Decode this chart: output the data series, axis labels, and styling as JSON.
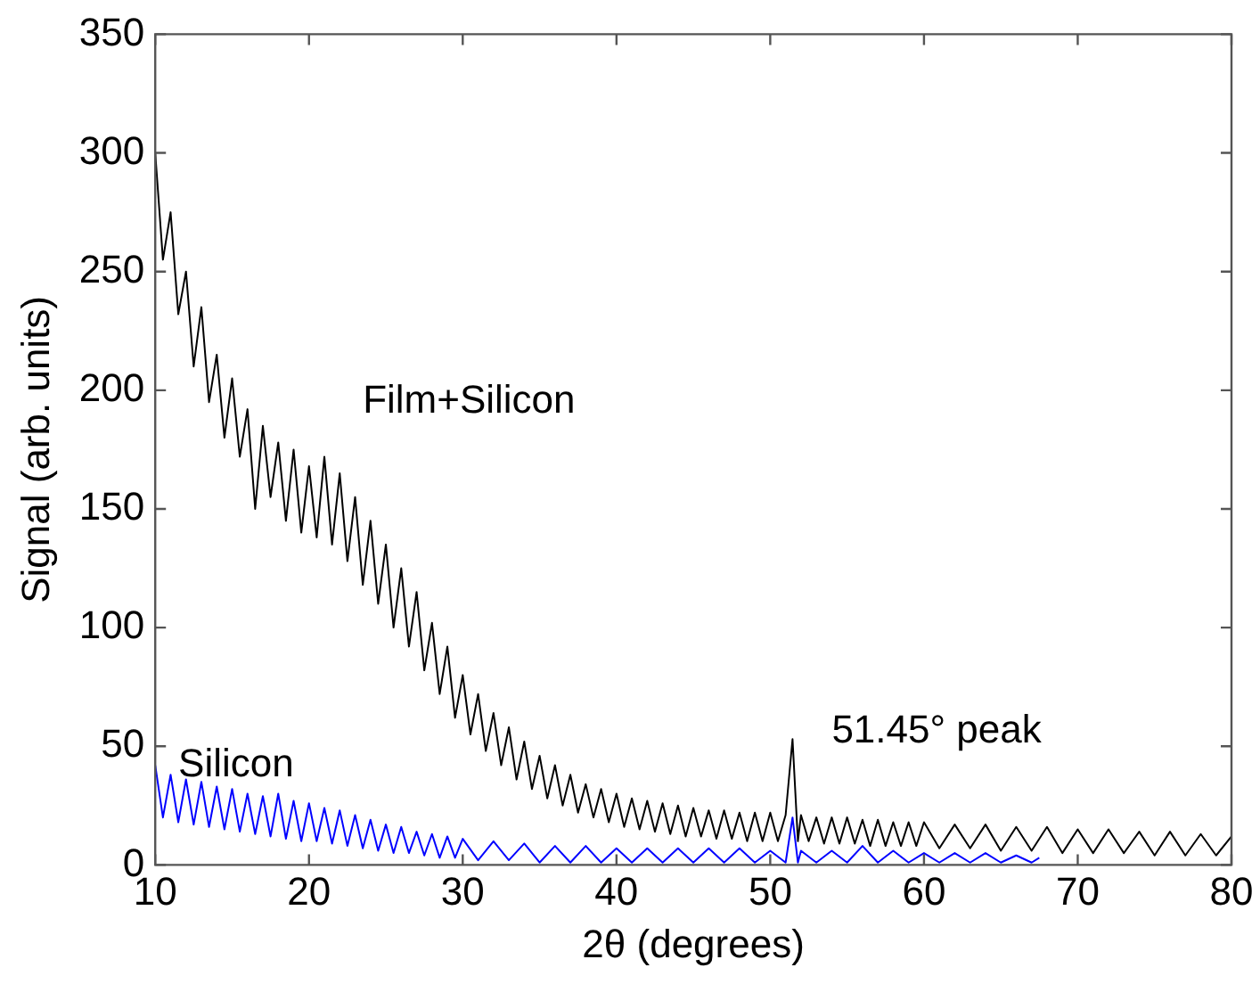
{
  "chart_data": {
    "type": "line",
    "xlabel": "2θ (degrees)",
    "ylabel": "Signal (arb. units)",
    "xlim": [
      10,
      80
    ],
    "xticks": [
      10,
      20,
      30,
      40,
      50,
      60,
      70,
      80
    ],
    "ylim": [
      0,
      350
    ],
    "yticks": [
      0,
      50,
      100,
      150,
      200,
      250,
      300,
      350
    ],
    "grid": false,
    "legend": false,
    "marker": "none",
    "line_style": "solid",
    "annotations": [
      {
        "text": "51.45° peak",
        "x": 51.45,
        "y": 53
      }
    ],
    "series": [
      {
        "name": "Film+Silicon",
        "color": "#000000",
        "x": [
          10,
          10.5,
          11,
          11.5,
          12,
          12.5,
          13,
          13.5,
          14,
          14.5,
          15,
          15.5,
          16,
          16.5,
          17,
          17.5,
          18,
          18.5,
          19,
          19.5,
          20,
          20.5,
          21,
          21.5,
          22,
          22.5,
          23,
          23.5,
          24,
          24.5,
          25,
          25.5,
          26,
          26.5,
          27,
          27.5,
          28,
          28.5,
          29,
          29.5,
          30,
          30.5,
          31,
          31.5,
          32,
          32.5,
          33,
          33.5,
          34,
          34.5,
          35,
          35.5,
          36,
          36.5,
          37,
          37.5,
          38,
          38.5,
          39,
          39.5,
          40,
          40.5,
          41,
          41.5,
          42,
          42.5,
          43,
          43.5,
          44,
          44.5,
          45,
          45.5,
          46,
          46.5,
          47,
          47.5,
          48,
          48.5,
          49,
          49.5,
          50,
          50.5,
          51,
          51.45,
          51.8,
          52,
          52.5,
          53,
          53.5,
          54,
          54.5,
          55,
          55.5,
          56,
          56.5,
          57,
          57.5,
          58,
          58.5,
          59,
          59.5,
          60,
          61,
          62,
          63,
          64,
          65,
          66,
          67,
          68,
          69,
          70,
          71,
          72,
          73,
          74,
          75,
          76,
          77,
          78,
          79,
          80
        ],
        "values": [
          300,
          255,
          275,
          232,
          250,
          210,
          235,
          195,
          215,
          180,
          205,
          172,
          192,
          150,
          185,
          155,
          178,
          145,
          175,
          140,
          168,
          138,
          172,
          135,
          165,
          128,
          155,
          118,
          145,
          110,
          135,
          100,
          125,
          92,
          115,
          82,
          102,
          72,
          92,
          62,
          80,
          55,
          72,
          48,
          64,
          42,
          58,
          36,
          52,
          32,
          46,
          28,
          42,
          25,
          38,
          22,
          34,
          20,
          32,
          18,
          30,
          16,
          28,
          15,
          27,
          14,
          26,
          13,
          25,
          12,
          24,
          12,
          23,
          11,
          23,
          11,
          22,
          10,
          22,
          10,
          22,
          10,
          21,
          53,
          10,
          21,
          10,
          20,
          9,
          20,
          9,
          20,
          9,
          19,
          8,
          19,
          8,
          18,
          8,
          18,
          8,
          18,
          7,
          17,
          7,
          17,
          6,
          16,
          6,
          16,
          5,
          15,
          5,
          15,
          5,
          14,
          4,
          14,
          4,
          13,
          4,
          12
        ]
      },
      {
        "name": "Silicon",
        "color": "#0000ff",
        "x": [
          10,
          10.5,
          11,
          11.5,
          12,
          12.5,
          13,
          13.5,
          14,
          14.5,
          15,
          15.5,
          16,
          16.5,
          17,
          17.5,
          18,
          18.5,
          19,
          19.5,
          20,
          20.5,
          21,
          21.5,
          22,
          22.5,
          23,
          23.5,
          24,
          24.5,
          25,
          25.5,
          26,
          26.5,
          27,
          27.5,
          28,
          28.5,
          29,
          29.5,
          30,
          31,
          32,
          33,
          34,
          35,
          36,
          37,
          38,
          39,
          40,
          41,
          42,
          43,
          44,
          45,
          46,
          47,
          48,
          49,
          50,
          51,
          51.45,
          51.8,
          52,
          53,
          54,
          55,
          56,
          57,
          58,
          59,
          60,
          61,
          62,
          63,
          64,
          65,
          66,
          67,
          67.5
        ],
        "values": [
          42,
          20,
          38,
          18,
          36,
          17,
          35,
          16,
          33,
          15,
          32,
          14,
          30,
          13,
          29,
          12,
          30,
          11,
          27,
          10,
          26,
          10,
          24,
          9,
          23,
          8,
          21,
          7,
          19,
          6,
          17,
          5,
          16,
          5,
          14,
          4,
          13,
          3,
          12,
          3,
          11,
          2,
          10,
          2,
          9,
          1,
          8,
          1,
          8,
          1,
          7,
          1,
          7,
          1,
          7,
          1,
          7,
          1,
          7,
          1,
          6,
          1,
          20,
          1,
          6,
          1,
          6,
          1,
          8,
          1,
          6,
          1,
          5,
          1,
          5,
          1,
          5,
          1,
          4,
          1,
          3
        ]
      }
    ]
  }
}
